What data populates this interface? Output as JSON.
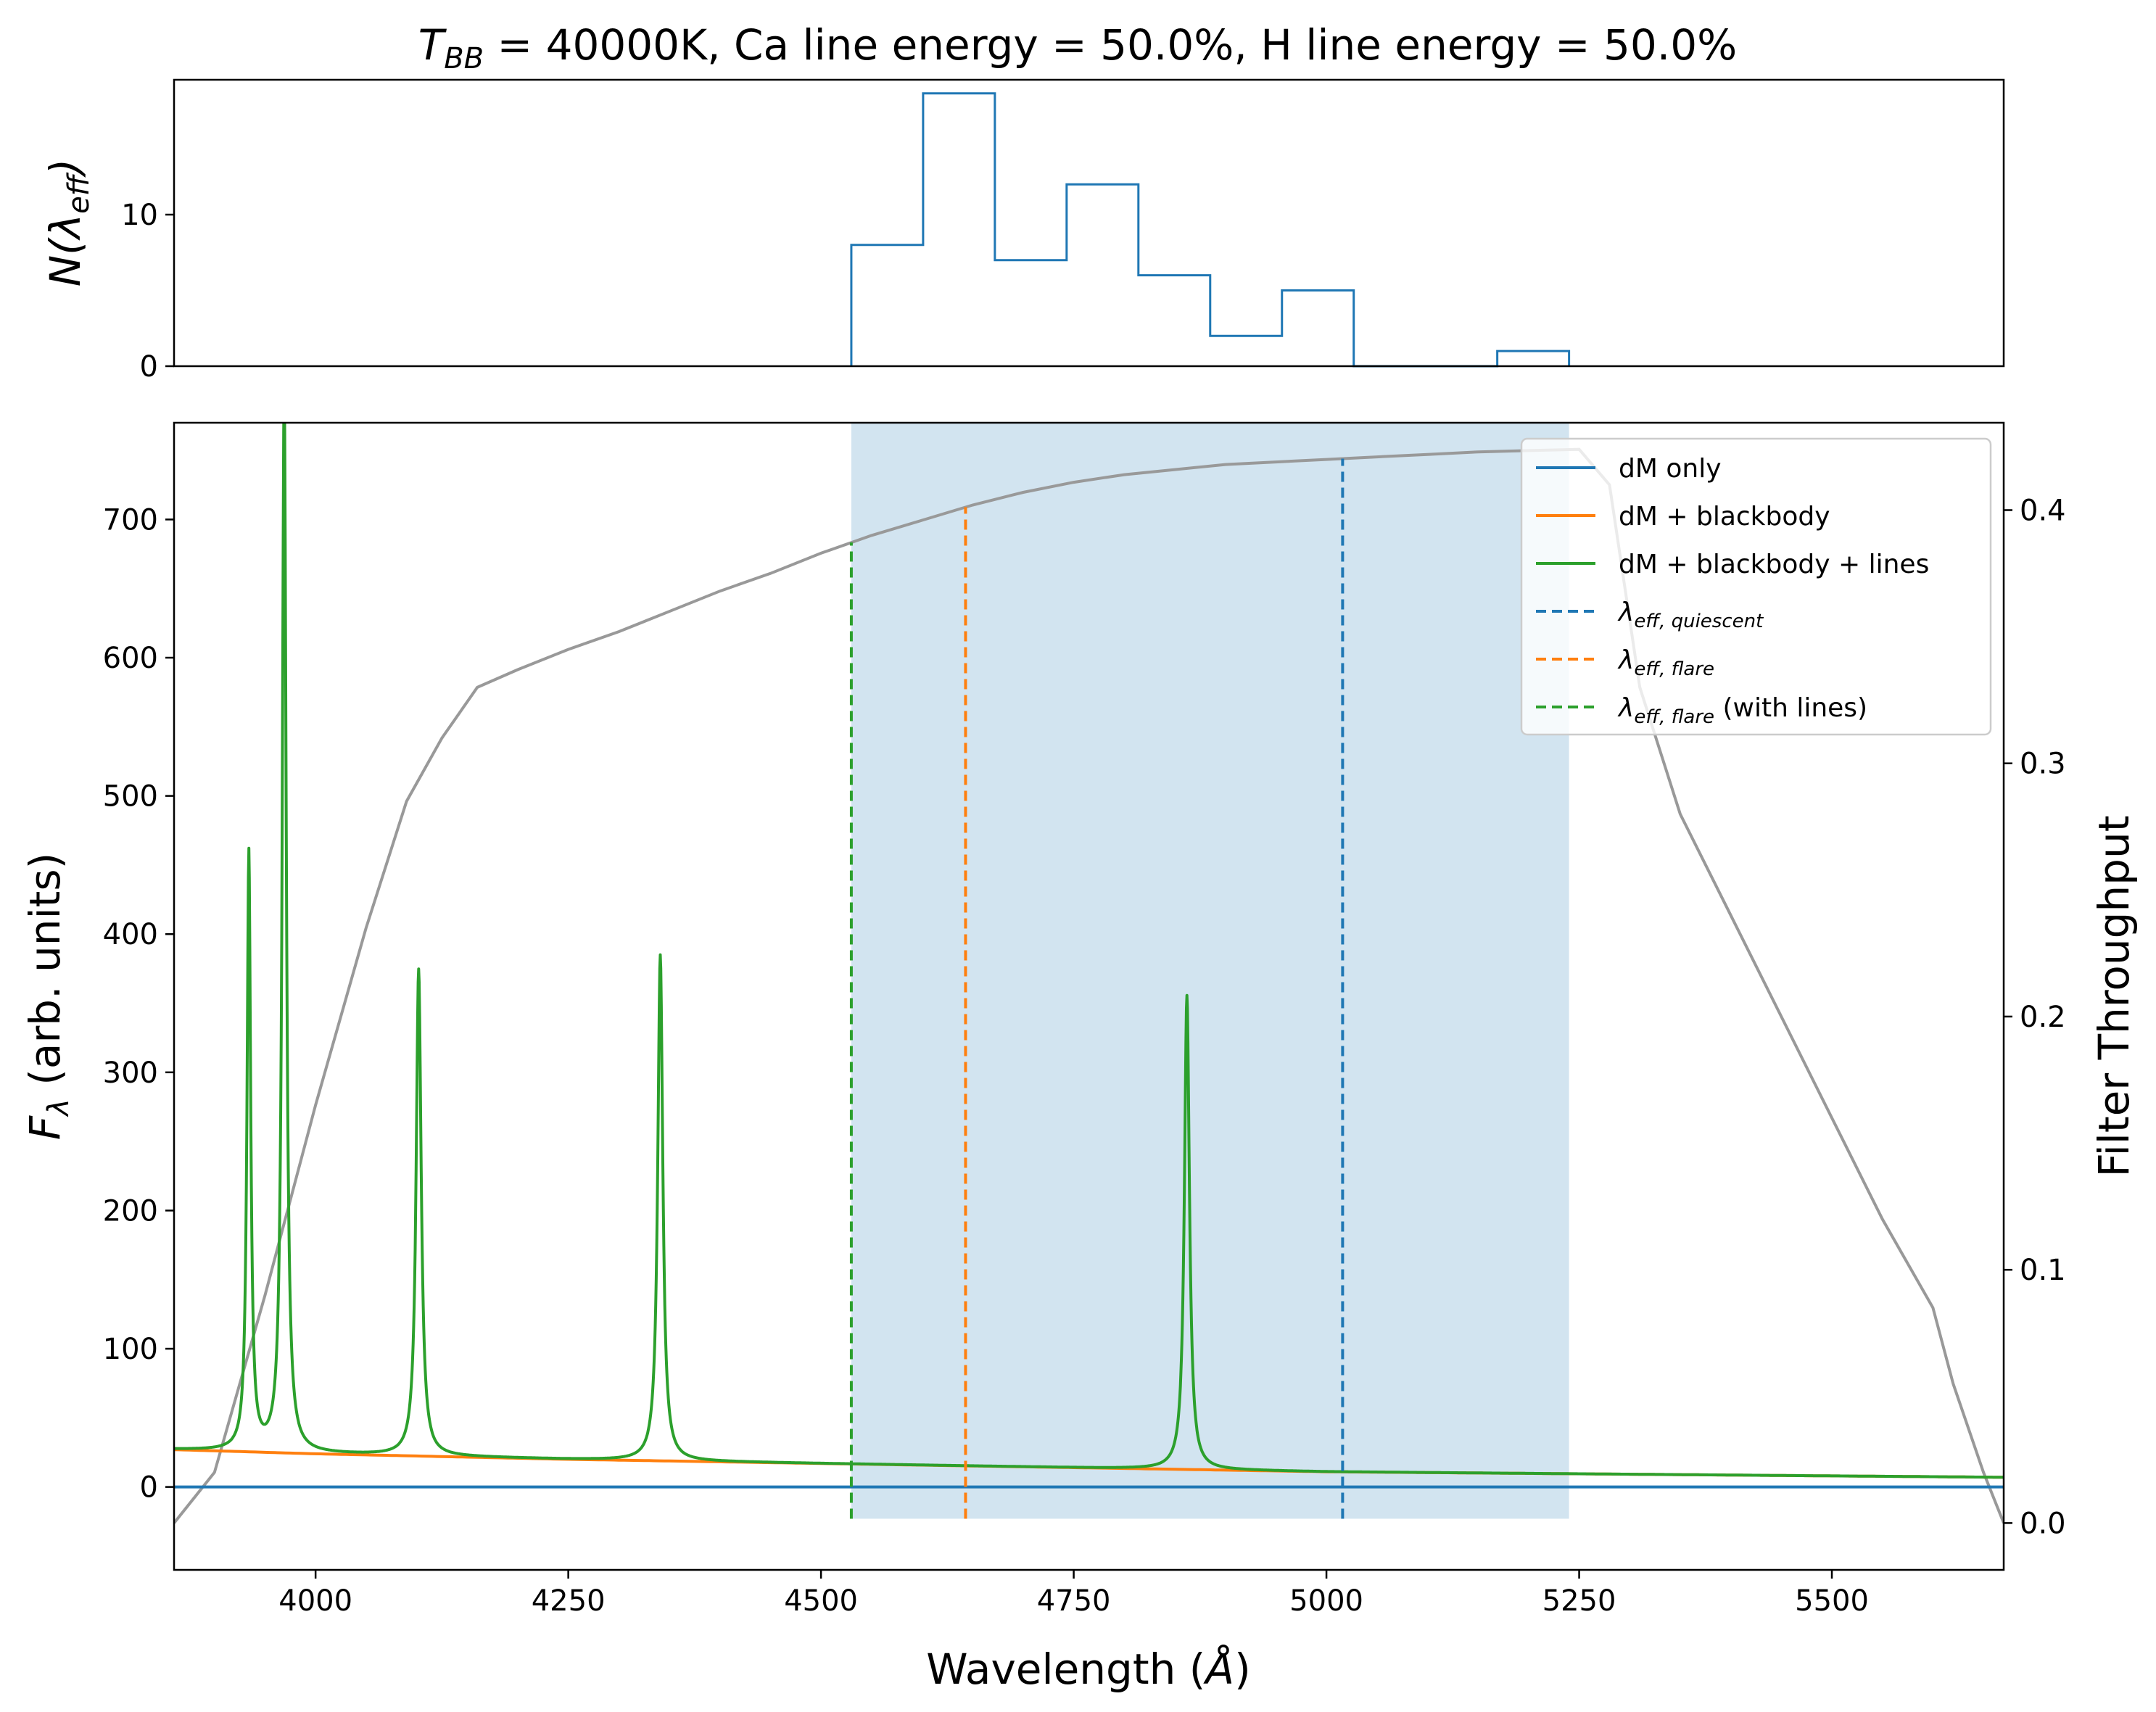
{
  "chart_data": [
    {
      "type": "step",
      "title": "T_BB = 40000K, Ca line energy = 50.0%, H line energy = 50.0%",
      "title_parts": {
        "T": "T",
        "BB": "BB",
        "rest": " = 40000K, Ca line energy = 50.0%, H line energy = 50.0%"
      },
      "ylabel": "N(λ_eff)",
      "ylabel_parts": {
        "main": "N(λ",
        "sub": "eff",
        "close": ")"
      },
      "xlim": [
        3860,
        5670
      ],
      "ylim": [
        0,
        18.9
      ],
      "yticks": [
        0,
        10
      ],
      "yticklabels": [
        "0",
        "10"
      ],
      "bin_edges": [
        4530,
        4601,
        4672,
        4743,
        4814,
        4885,
        4956,
        5027,
        5098,
        5169,
        5240
      ],
      "counts": [
        8,
        18,
        7,
        12,
        6,
        2,
        5,
        0,
        0,
        1
      ],
      "color": "#1f77b4"
    },
    {
      "type": "line",
      "xlabel": "Wavelength (Å)",
      "xlabel_parts": {
        "main": "Wavelength (",
        "unit": "Å",
        "close": ")"
      },
      "ylabel": "F_λ (arb. units)",
      "ylabel_parts": {
        "F": "F",
        "sub": "λ",
        "rest": " (arb. units)"
      },
      "y2label": "Filter Throughput",
      "xlim": [
        3860,
        5670
      ],
      "ylim": [
        -60,
        770
      ],
      "y2lim": [
        -0.0185,
        0.4345
      ],
      "xticks": [
        4000,
        4250,
        4500,
        4750,
        5000,
        5250,
        5500
      ],
      "xticklabels": [
        "4000",
        "4250",
        "4500",
        "4750",
        "5000",
        "5250",
        "5500"
      ],
      "yticks": [
        0,
        100,
        200,
        300,
        400,
        500,
        600,
        700
      ],
      "yticklabels": [
        "0",
        "100",
        "200",
        "300",
        "400",
        "500",
        "600",
        "700"
      ],
      "y2ticks": [
        0.0,
        0.1,
        0.2,
        0.3,
        0.4
      ],
      "y2ticklabels": [
        "0.0",
        "0.1",
        "0.2",
        "0.3",
        "0.4"
      ],
      "shaded_band": {
        "x0": 4530,
        "x1": 5240,
        "y0": -23,
        "y1": 770,
        "color": "#1f77b4",
        "alpha": 0.2
      },
      "continuum": {
        "x": [
          3860,
          4000,
          4250,
          4500,
          4750,
          5000,
          5250,
          5500,
          5670
        ],
        "y": [
          27,
          24,
          20,
          17,
          14,
          11,
          9.5,
          8,
          7
        ]
      },
      "emission_lines": [
        {
          "center": 3934,
          "peak": 433,
          "width": 2.2
        },
        {
          "center": 3969,
          "peak": 770,
          "width": 2.4
        },
        {
          "center": 4102,
          "peak": 352,
          "width": 3.0
        },
        {
          "center": 4341,
          "peak": 366,
          "width": 3.0
        },
        {
          "center": 4862,
          "peak": 343,
          "width": 3.0
        }
      ],
      "series": [
        {
          "name": "dM only",
          "color": "#1f77b4",
          "x": [
            3860,
            5670
          ],
          "y": [
            0,
            0
          ]
        },
        {
          "name": "dM + blackbody",
          "color": "#ff7f0e"
        },
        {
          "name": "dM + blackbody + lines",
          "color": "#2ca02c"
        }
      ],
      "throughput": {
        "color": "#999999",
        "x": [
          3860,
          3900,
          3950,
          4000,
          4050,
          4090,
          4125,
          4160,
          4200,
          4250,
          4300,
          4350,
          4400,
          4450,
          4500,
          4550,
          4600,
          4650,
          4700,
          4750,
          4800,
          4850,
          4900,
          4950,
          5000,
          5050,
          5100,
          5150,
          5200,
          5250,
          5280,
          5310,
          5350,
          5400,
          5450,
          5500,
          5550,
          5600,
          5620,
          5650,
          5670
        ],
        "y": [
          0.0,
          0.02,
          0.09,
          0.165,
          0.235,
          0.285,
          0.31,
          0.33,
          0.337,
          0.345,
          0.352,
          0.36,
          0.368,
          0.375,
          0.383,
          0.39,
          0.396,
          0.402,
          0.407,
          0.411,
          0.414,
          0.416,
          0.418,
          0.419,
          0.42,
          0.421,
          0.422,
          0.423,
          0.4235,
          0.424,
          0.41,
          0.33,
          0.28,
          0.24,
          0.2,
          0.16,
          0.12,
          0.085,
          0.055,
          0.02,
          0.0
        ]
      },
      "vlines": [
        {
          "name": "λ_eff,quiescent",
          "x": 5016,
          "color": "#1f77b4",
          "dashed": true
        },
        {
          "name": "λ_eff,flare",
          "x": 4643,
          "color": "#ff7f0e",
          "dashed": true
        },
        {
          "name": "λ_eff,flare (with lines)",
          "x": 4530,
          "color": "#2ca02c",
          "dashed": true
        }
      ],
      "legend": {
        "position": "upper right",
        "entries": [
          {
            "text": "dM only",
            "color": "#1f77b4",
            "dashed": false
          },
          {
            "text": "dM + blackbody",
            "color": "#ff7f0e",
            "dashed": false
          },
          {
            "text": "dM + blackbody + lines",
            "color": "#2ca02c",
            "dashed": false
          },
          {
            "lambda": "λ",
            "sub": "eff, quiescent",
            "suffix": "",
            "color": "#1f77b4",
            "dashed": true
          },
          {
            "lambda": "λ",
            "sub": "eff, flare",
            "suffix": "",
            "color": "#ff7f0e",
            "dashed": true
          },
          {
            "lambda": "λ",
            "sub": "eff, flare",
            "suffix": " (with lines)",
            "color": "#2ca02c",
            "dashed": true
          }
        ]
      }
    }
  ]
}
